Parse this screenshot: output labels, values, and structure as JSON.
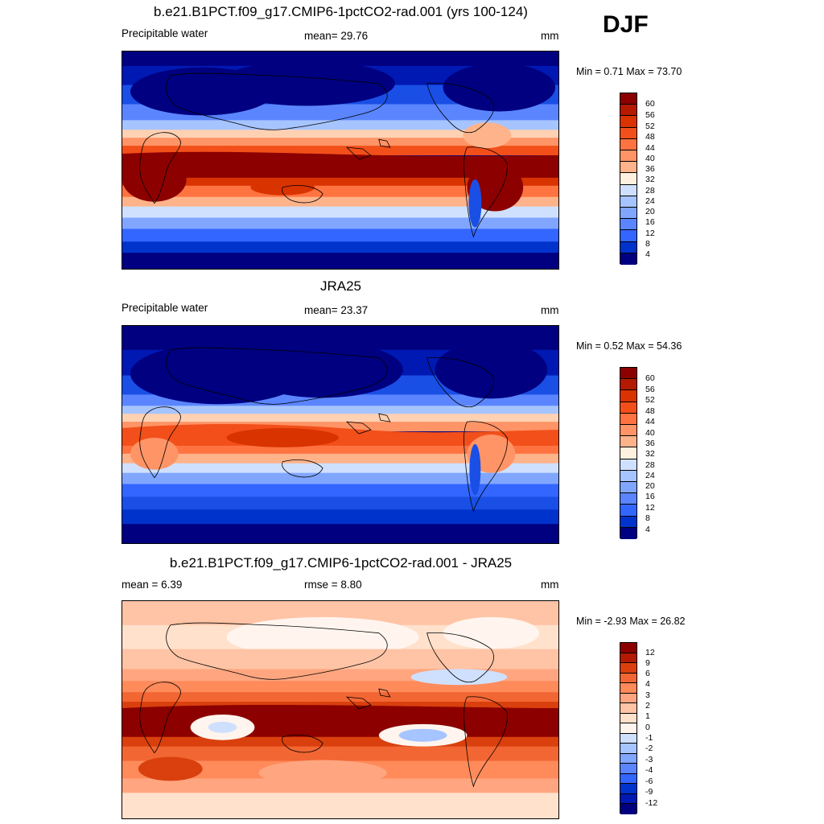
{
  "season": "DJF",
  "panels": [
    {
      "id": "model",
      "title": "b.e21.B1PCT.f09_g17.CMIP6-1pctCO2-rad.001 (yrs 100-124)",
      "left_label": "Precipitable water",
      "center_label": "mean=  29.76",
      "units": "mm",
      "minmax": "Min =   0.71 Max =  73.70",
      "colorbar_ticks": [
        "60",
        "56",
        "52",
        "48",
        "44",
        "40",
        "36",
        "32",
        "28",
        "24",
        "20",
        "16",
        "12",
        "8",
        "4"
      ]
    },
    {
      "id": "obs",
      "title": "JRA25",
      "left_label": "Precipitable water",
      "center_label": "mean=  23.37",
      "units": "mm",
      "minmax": "Min =   0.52 Max =  54.36",
      "colorbar_ticks": [
        "60",
        "56",
        "52",
        "48",
        "44",
        "40",
        "36",
        "32",
        "28",
        "24",
        "20",
        "16",
        "12",
        "8",
        "4"
      ]
    },
    {
      "id": "diff",
      "title": "b.e21.B1PCT.f09_g17.CMIP6-1pctCO2-rad.001 - JRA25",
      "left_label": "mean =   6.39",
      "center_label": "rmse =   8.80",
      "units": "mm",
      "minmax": "Min =  -2.93 Max =  26.82",
      "colorbar_ticks": [
        "12",
        "9",
        "6",
        "4",
        "3",
        "2",
        "1",
        "0",
        "-1",
        "-2",
        "-3",
        "-4",
        "-6",
        "-9",
        "-12"
      ]
    }
  ],
  "colors": {
    "field_scale": [
      "#000080",
      "#0019b3",
      "#0033cc",
      "#1a4fe6",
      "#3366ff",
      "#5a85ff",
      "#80a6ff",
      "#a6c4ff",
      "#cfe0ff",
      "#fff0e0",
      "#ffd1b3",
      "#ffb38a",
      "#ff9466",
      "#ff7340",
      "#f24f1a",
      "#d93300",
      "#b31a00",
      "#8c0000"
    ],
    "diff_scale": [
      "#000080",
      "#0019b3",
      "#0033cc",
      "#3366ff",
      "#5a85ff",
      "#80a6ff",
      "#a6c4ff",
      "#cfe0ff",
      "#fff5ee",
      "#ffe1cc",
      "#ffc4a6",
      "#ffa680",
      "#ff8a5a",
      "#f26633",
      "#d9400d",
      "#b31a00",
      "#8c0000"
    ],
    "coastline": "#000000"
  }
}
